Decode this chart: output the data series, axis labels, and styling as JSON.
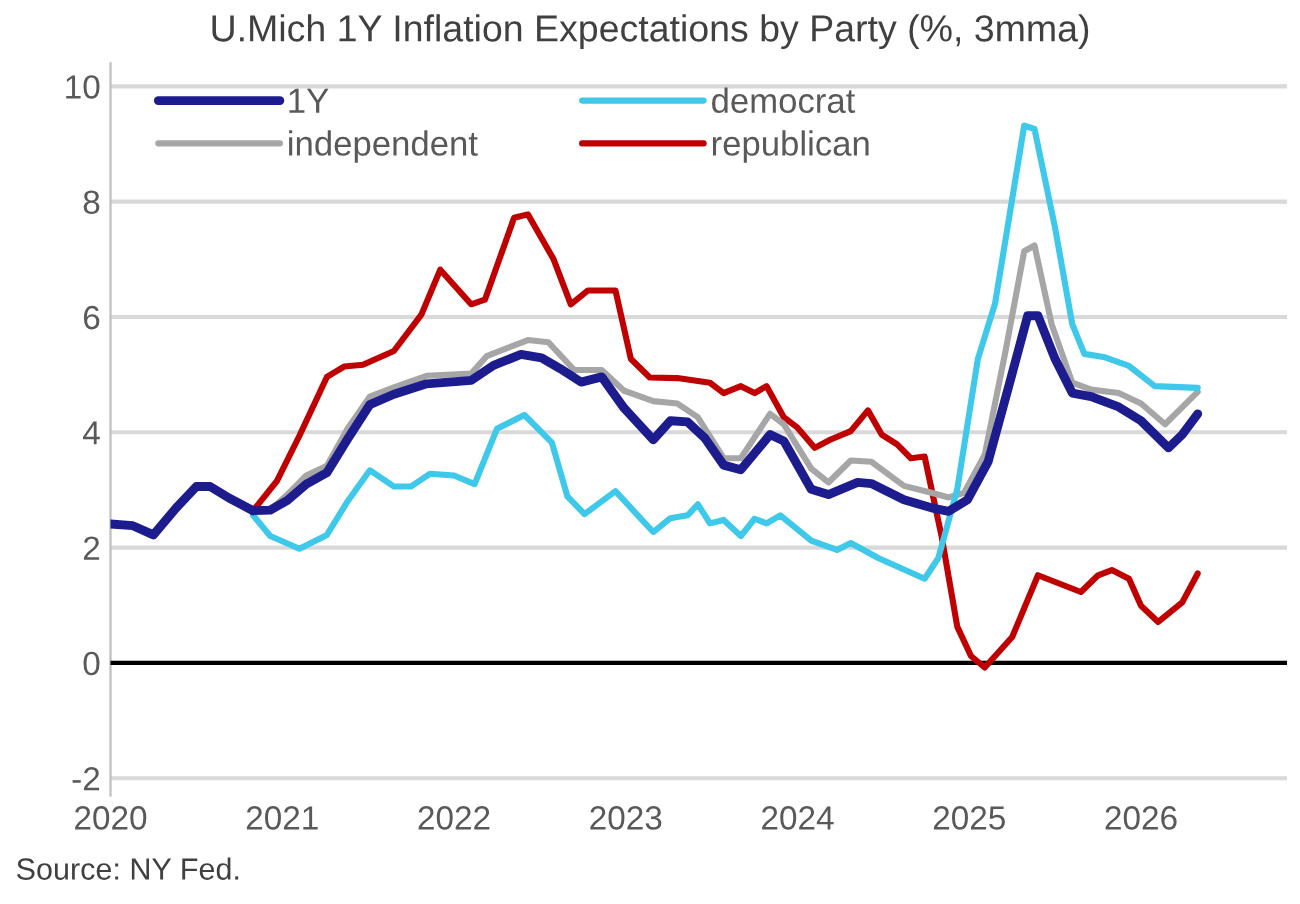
{
  "chart_data": {
    "type": "line",
    "title": "U.Mich 1Y Inflation Expectations by Party (%, 3mma)",
    "annotations": [
      "Source: NY Fed."
    ],
    "series": [
      {
        "name": "1Y",
        "color": "#1c1c8f",
        "x": [
          2020.0,
          2020.13,
          2020.25,
          2020.38,
          2020.5,
          2020.58,
          2020.69,
          2020.83,
          2020.93,
          2021.03,
          2021.14,
          2021.26,
          2021.38,
          2021.51,
          2021.65,
          2021.84,
          2022.1,
          2022.23,
          2022.39,
          2022.51,
          2022.62,
          2022.74,
          2022.86,
          2022.99,
          2023.16,
          2023.26,
          2023.36,
          2023.46,
          2023.57,
          2023.67,
          2023.84,
          2023.92,
          2024.08,
          2024.18,
          2024.35,
          2024.43,
          2024.62,
          2024.78,
          2024.88,
          2024.99,
          2025.11,
          2025.23,
          2025.34,
          2025.4,
          2025.5,
          2025.6,
          2025.71,
          2025.87,
          2026.0,
          2026.16,
          2026.24,
          2026.33
        ],
        "values": [
          2.41,
          2.38,
          2.22,
          2.68,
          3.06,
          3.06,
          2.86,
          2.64,
          2.65,
          2.82,
          3.1,
          3.3,
          3.88,
          4.48,
          4.66,
          4.84,
          4.9,
          5.16,
          5.35,
          5.29,
          5.1,
          4.87,
          4.96,
          4.42,
          3.87,
          4.2,
          4.18,
          3.9,
          3.43,
          3.35,
          3.96,
          3.85,
          3.01,
          2.92,
          3.13,
          3.11,
          2.83,
          2.69,
          2.63,
          2.83,
          3.49,
          4.8,
          6.02,
          6.02,
          5.27,
          4.68,
          4.62,
          4.44,
          4.2,
          3.73,
          3.96,
          4.32
        ]
      },
      {
        "name": "democrat",
        "color": "#3ec8ea",
        "x": [
          2020.83,
          2020.93,
          2021.1,
          2021.26,
          2021.38,
          2021.51,
          2021.65,
          2021.75,
          2021.86,
          2022.0,
          2022.12,
          2022.25,
          2022.41,
          2022.57,
          2022.66,
          2022.76,
          2022.94,
          2023.07,
          2023.16,
          2023.26,
          2023.36,
          2023.42,
          2023.49,
          2023.57,
          2023.67,
          2023.75,
          2023.82,
          2023.9,
          2024.08,
          2024.23,
          2024.31,
          2024.47,
          2024.74,
          2024.82,
          2024.93,
          2025.05,
          2025.15,
          2025.32,
          2025.38,
          2025.5,
          2025.6,
          2025.67,
          2025.79,
          2025.93,
          2026.08,
          2026.33
        ],
        "values": [
          2.56,
          2.2,
          1.98,
          2.22,
          2.8,
          3.34,
          3.06,
          3.06,
          3.28,
          3.25,
          3.1,
          4.06,
          4.3,
          3.82,
          2.89,
          2.58,
          2.98,
          2.56,
          2.27,
          2.51,
          2.56,
          2.75,
          2.42,
          2.48,
          2.2,
          2.5,
          2.42,
          2.56,
          2.12,
          1.96,
          2.08,
          1.82,
          1.46,
          1.82,
          3.01,
          5.27,
          6.23,
          9.32,
          9.26,
          7.54,
          5.87,
          5.36,
          5.3,
          5.15,
          4.8,
          4.77
        ]
      },
      {
        "name": "independent",
        "color": "#a6a6a6",
        "x": [
          2020.93,
          2021.03,
          2021.14,
          2021.26,
          2021.38,
          2021.51,
          2021.65,
          2021.84,
          2022.1,
          2022.19,
          2022.43,
          2022.55,
          2022.7,
          2022.86,
          2022.99,
          2023.03,
          2023.16,
          2023.3,
          2023.42,
          2023.57,
          2023.67,
          2023.84,
          2023.92,
          2024.08,
          2024.18,
          2024.31,
          2024.43,
          2024.62,
          2024.78,
          2024.88,
          2024.97,
          2025.09,
          2025.21,
          2025.32,
          2025.38,
          2025.48,
          2025.6,
          2025.71,
          2025.87,
          2026.0,
          2026.14,
          2026.33
        ],
        "values": [
          2.65,
          2.92,
          3.25,
          3.42,
          4.06,
          4.62,
          4.78,
          4.98,
          5.02,
          5.32,
          5.6,
          5.56,
          5.08,
          5.08,
          4.72,
          4.68,
          4.54,
          4.5,
          4.26,
          3.55,
          3.55,
          4.32,
          4.14,
          3.37,
          3.13,
          3.51,
          3.49,
          3.07,
          2.95,
          2.87,
          2.95,
          3.61,
          5.39,
          7.14,
          7.24,
          5.87,
          4.86,
          4.74,
          4.68,
          4.5,
          4.14,
          4.7
        ]
      },
      {
        "name": "republican",
        "color": "#c00000",
        "x": [
          2020.83,
          2020.97,
          2021.1,
          2021.26,
          2021.36,
          2021.47,
          2021.65,
          2021.81,
          2021.92,
          2022.1,
          2022.18,
          2022.35,
          2022.43,
          2022.58,
          2022.68,
          2022.78,
          2022.94,
          2023.03,
          2023.14,
          2023.3,
          2023.42,
          2023.49,
          2023.57,
          2023.67,
          2023.75,
          2023.82,
          2023.92,
          2024.0,
          2024.1,
          2024.19,
          2024.31,
          2024.41,
          2024.49,
          2024.58,
          2024.66,
          2024.74,
          2024.84,
          2024.93,
          2025.01,
          2025.09,
          2025.25,
          2025.4,
          2025.65,
          2025.75,
          2025.83,
          2025.93,
          2026.0,
          2026.1,
          2026.24,
          2026.33
        ],
        "values": [
          2.64,
          3.16,
          3.94,
          4.96,
          5.14,
          5.17,
          5.41,
          6.04,
          6.82,
          6.22,
          6.3,
          7.72,
          7.78,
          7.0,
          6.22,
          6.46,
          6.46,
          5.27,
          4.95,
          4.94,
          4.89,
          4.86,
          4.68,
          4.8,
          4.68,
          4.8,
          4.26,
          4.08,
          3.73,
          3.87,
          4.02,
          4.38,
          3.96,
          3.79,
          3.55,
          3.58,
          2.18,
          0.63,
          0.12,
          -0.08,
          0.45,
          1.52,
          1.23,
          1.52,
          1.61,
          1.46,
          0.99,
          0.71,
          1.05,
          1.55
        ]
      }
    ],
    "xlim": [
      2020,
      2026.85
    ],
    "xticks": [
      2020,
      2021,
      2022,
      2023,
      2024,
      2025,
      2026
    ],
    "ylim": [
      -2.3,
      10.4
    ],
    "yticks": [
      {
        "value": -2,
        "label": "-2"
      },
      0,
      2,
      4,
      6,
      8,
      10
    ],
    "ref_lines": [
      {
        "axis": "y",
        "value": 0,
        "color": "#000000"
      }
    ],
    "grid": "y",
    "legend": "top left",
    "marker": "none",
    "line_style": "solid"
  }
}
